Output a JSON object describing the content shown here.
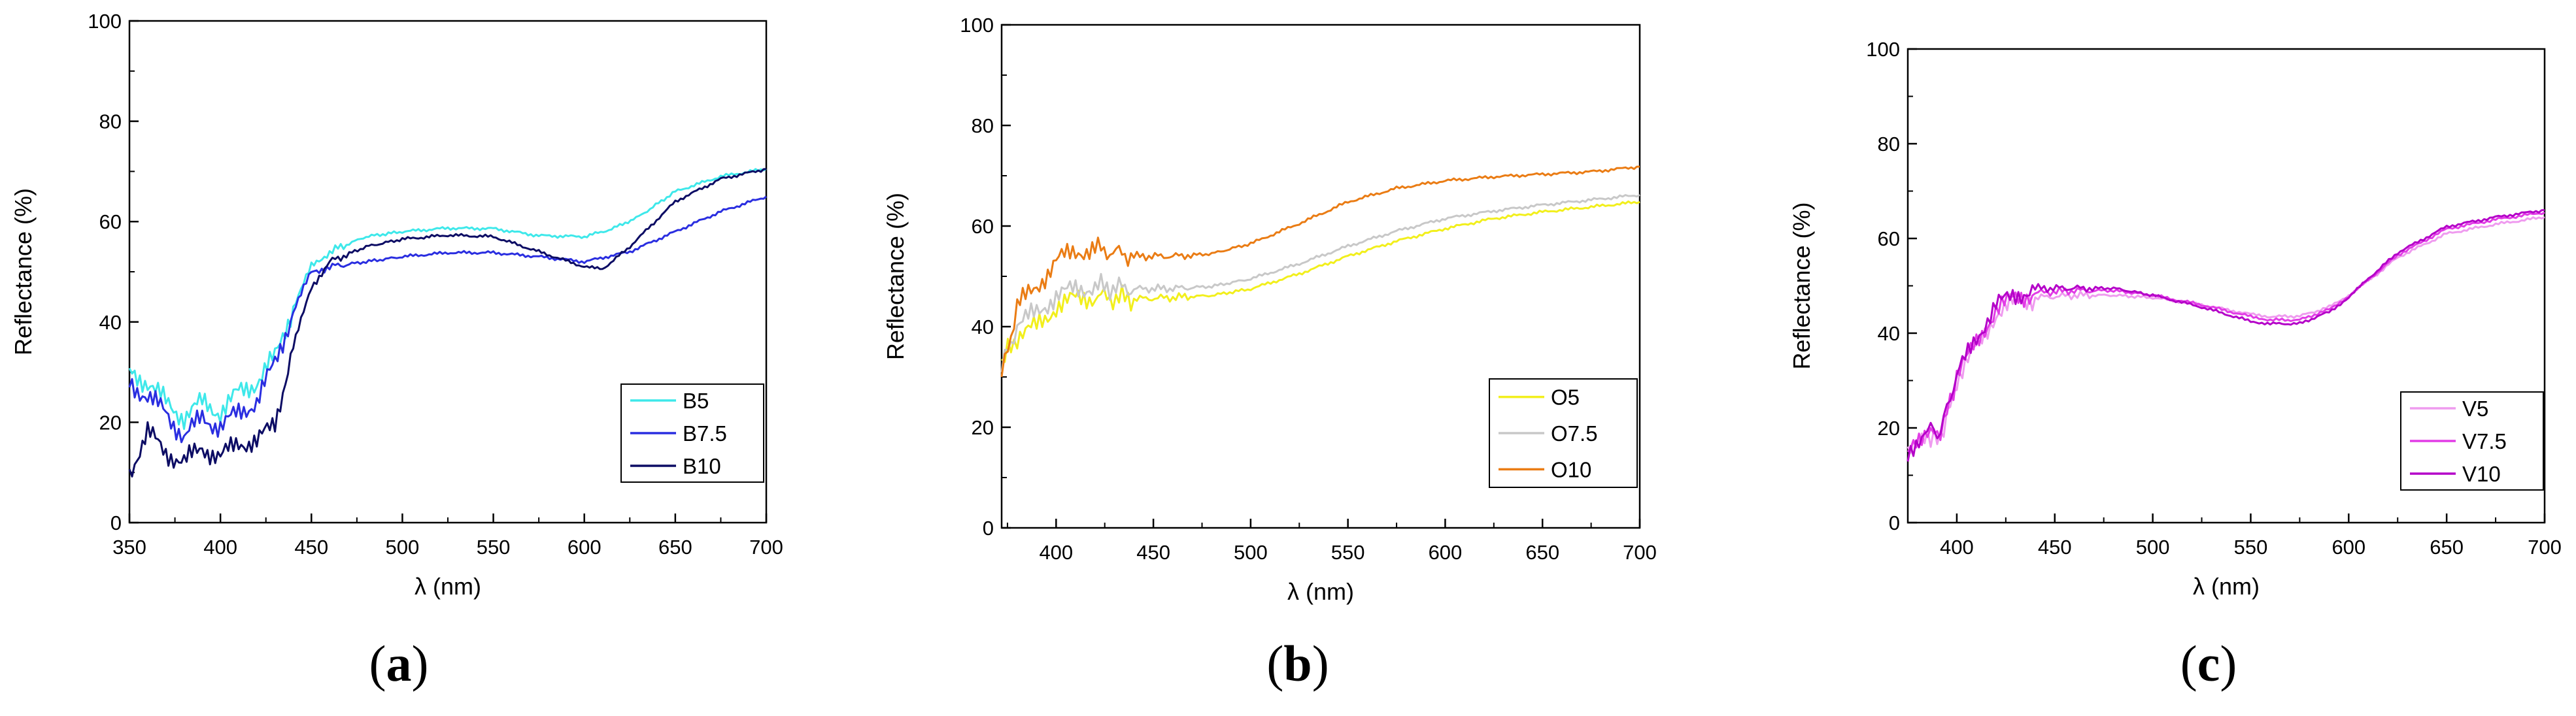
{
  "colors": {
    "B5": "#3ee8ea",
    "B7.5": "#2a2ee0",
    "B10": "#0c0c64",
    "O5": "#f2ef1c",
    "O7.5": "#c8c8c8",
    "O10": "#ea7c14",
    "V5": "#ef9bef",
    "V7.5": "#e23ce6",
    "V10": "#b400c8"
  },
  "chart_data": [
    {
      "type": "line",
      "panel_label": "a",
      "xlabel": "λ (nm)",
      "ylabel": "Reflectance (%)",
      "xlim": [
        350,
        700
      ],
      "ylim": [
        0,
        100
      ],
      "xticks": [
        350,
        400,
        450,
        500,
        550,
        600,
        650,
        700
      ],
      "yticks": [
        0,
        20,
        40,
        60,
        80,
        100
      ],
      "legend": "bottom-right",
      "grid": false,
      "series": [
        {
          "name": "B5",
          "color": "#3ee8ea",
          "x": [
            350,
            360,
            370,
            380,
            390,
            400,
            410,
            420,
            430,
            440,
            450,
            460,
            480,
            500,
            525,
            550,
            575,
            600,
            615,
            630,
            650,
            675,
            700
          ],
          "y": [
            30,
            28,
            24,
            21,
            24,
            22,
            26,
            28,
            33,
            43,
            51,
            54,
            57,
            58,
            58.7,
            58.6,
            57.2,
            57,
            58.5,
            61,
            66,
            69,
            70.5
          ]
        },
        {
          "name": "B7.5",
          "color": "#2a2ee0",
          "x": [
            350,
            360,
            370,
            380,
            390,
            400,
            410,
            420,
            430,
            440,
            450,
            460,
            480,
            500,
            525,
            550,
            575,
            600,
            625,
            650,
            675,
            700
          ],
          "y": [
            28,
            25,
            22,
            17,
            21,
            19,
            22,
            24,
            32,
            42,
            50,
            51,
            52,
            53,
            53.8,
            53.8,
            53,
            52,
            54,
            58,
            62,
            65
          ]
        },
        {
          "name": "B10",
          "color": "#0c0c64",
          "x": [
            350,
            360,
            370,
            380,
            390,
            400,
            410,
            420,
            430,
            440,
            450,
            460,
            480,
            500,
            525,
            550,
            575,
            600,
            610,
            625,
            650,
            675,
            700
          ],
          "y": [
            10,
            18,
            14,
            12,
            15,
            13,
            16,
            16,
            20,
            35,
            47,
            52,
            55,
            56.5,
            57.3,
            57,
            54,
            51,
            50.5,
            55,
            64,
            68.5,
            70.5
          ]
        }
      ]
    },
    {
      "type": "line",
      "panel_label": "b",
      "xlabel": "λ (nm)",
      "ylabel": "Reflectance (%)",
      "xlim": [
        372,
        700
      ],
      "ylim": [
        0,
        100
      ],
      "xticks": [
        400,
        450,
        500,
        550,
        600,
        650,
        700
      ],
      "yticks": [
        0,
        20,
        40,
        60,
        80,
        100
      ],
      "legend": "bottom-right",
      "grid": false,
      "series": [
        {
          "name": "O5",
          "color": "#f2ef1c",
          "x": [
            372,
            380,
            390,
            400,
            410,
            420,
            440,
            460,
            480,
            500,
            525,
            550,
            575,
            600,
            625,
            650,
            675,
            700
          ],
          "y": [
            33,
            38,
            40,
            44,
            45.5,
            46,
            45.5,
            45.8,
            46.2,
            47.5,
            50.5,
            54,
            57,
            59.5,
            61.5,
            62.8,
            63.8,
            64.8
          ]
        },
        {
          "name": "O7.5",
          "color": "#c8c8c8",
          "x": [
            372,
            380,
            390,
            400,
            410,
            420,
            440,
            460,
            480,
            500,
            525,
            550,
            575,
            600,
            625,
            650,
            675,
            700
          ],
          "y": [
            32,
            40,
            43,
            46,
            47.5,
            48,
            47.5,
            47.6,
            48,
            49.5,
            52.5,
            56,
            59,
            61.5,
            63,
            64.2,
            65.2,
            66.2
          ]
        },
        {
          "name": "O10",
          "color": "#ea7c14",
          "x": [
            372,
            380,
            390,
            400,
            410,
            420,
            440,
            460,
            480,
            500,
            525,
            550,
            575,
            600,
            625,
            650,
            675,
            700
          ],
          "y": [
            30,
            44,
            48,
            53,
            55,
            55.5,
            54,
            54,
            54.5,
            56.5,
            60.5,
            64.8,
            67.5,
            69,
            69.8,
            70.3,
            70.8,
            71.8
          ]
        }
      ]
    },
    {
      "type": "line",
      "panel_label": "c",
      "xlabel": "λ (nm)",
      "ylabel": "Reflectance (%)",
      "xlim": [
        375,
        700
      ],
      "ylim": [
        0,
        100
      ],
      "xticks": [
        400,
        450,
        500,
        550,
        600,
        650,
        700
      ],
      "yticks": [
        0,
        20,
        40,
        60,
        80,
        100
      ],
      "legend": "bottom-right",
      "grid": false,
      "series": [
        {
          "name": "V5",
          "color": "#ef9bef",
          "x": [
            375,
            385,
            390,
            395,
            400,
            410,
            420,
            430,
            440,
            460,
            480,
            500,
            525,
            550,
            560,
            575,
            590,
            600,
            610,
            625,
            650,
            675,
            700
          ],
          "y": [
            14,
            19,
            17,
            22,
            30,
            37,
            44,
            46.5,
            47.5,
            48,
            48,
            47.5,
            46,
            44,
            43.5,
            43.6,
            45.5,
            48,
            51,
            56,
            61,
            63,
            64.5
          ]
        },
        {
          "name": "V7.5",
          "color": "#e23ce6",
          "x": [
            375,
            385,
            390,
            395,
            400,
            410,
            420,
            430,
            440,
            460,
            480,
            500,
            525,
            550,
            560,
            575,
            590,
            600,
            610,
            625,
            650,
            675,
            700
          ],
          "y": [
            14,
            20,
            18,
            23,
            31,
            38,
            45,
            47.5,
            48.5,
            49,
            49,
            48,
            46,
            43.5,
            42.8,
            42.8,
            45,
            47.8,
            51.2,
            56.5,
            62,
            64,
            65.5
          ]
        },
        {
          "name": "V10",
          "color": "#b400c8",
          "x": [
            375,
            385,
            390,
            395,
            400,
            410,
            420,
            430,
            440,
            460,
            480,
            500,
            525,
            550,
            560,
            575,
            590,
            600,
            610,
            625,
            650,
            675,
            700
          ],
          "y": [
            13,
            21,
            18,
            24,
            31,
            39,
            46,
            48,
            49.5,
            49.5,
            49.5,
            48,
            45.5,
            42.5,
            42,
            42,
            44.5,
            47.5,
            51.5,
            57,
            62.5,
            64.5,
            66
          ]
        }
      ]
    }
  ]
}
